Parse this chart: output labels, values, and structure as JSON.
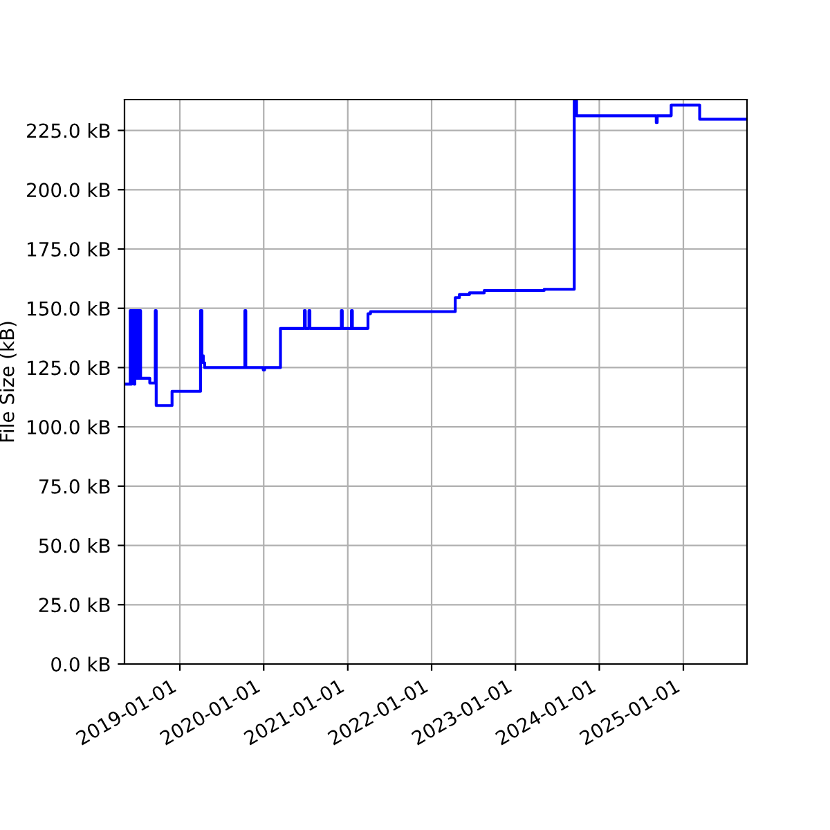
{
  "chart_data": {
    "type": "step",
    "ylabel": "File Size (kB)",
    "x": [
      "2018-05-05",
      "2018-05-30",
      "2018-06-03",
      "2018-06-05",
      "2018-06-09",
      "2018-06-12",
      "2018-06-16",
      "2018-06-19",
      "2018-06-23",
      "2018-06-26",
      "2018-06-30",
      "2018-07-03",
      "2018-07-07",
      "2018-07-10",
      "2018-07-14",
      "2018-08-23",
      "2018-09-16",
      "2018-09-20",
      "2018-11-28",
      "2019-04-01",
      "2019-04-07",
      "2019-04-13",
      "2019-04-19",
      "2019-10-11",
      "2019-10-15",
      "2019-12-30",
      "2020-01-05",
      "2020-03-14",
      "2020-06-26",
      "2020-06-30",
      "2020-07-16",
      "2020-07-20",
      "2020-12-04",
      "2020-12-08",
      "2021-01-17",
      "2021-01-21",
      "2021-03-30",
      "2021-04-10",
      "2022-04-14",
      "2022-05-02",
      "2022-06-15",
      "2022-08-18",
      "2023-05-06",
      "2023-09-14",
      "2023-09-24",
      "2024-09-05",
      "2024-09-09",
      "2024-11-09",
      "2025-03-13",
      "2025-10-05"
    ],
    "series": [
      {
        "color": "#0000ff",
        "values": [
          118,
          149,
          118,
          149,
          120.5,
          149,
          118,
          149,
          120.5,
          149,
          120.5,
          149,
          120.5,
          149,
          120.5,
          118.5,
          149,
          109,
          115,
          149,
          130,
          127,
          125,
          149,
          125,
          124,
          125,
          141.5,
          149,
          141.5,
          149,
          141.5,
          149,
          141.5,
          149,
          141.5,
          147.7,
          148.6,
          154.5,
          155.8,
          156.5,
          157.5,
          158,
          237.5,
          231.2,
          228.3,
          231.2,
          235.7,
          229.7,
          229.7
        ]
      }
    ],
    "xlim": [
      "2018-05-05",
      "2025-10-05"
    ],
    "xticks": [
      "2019-01-01",
      "2020-01-01",
      "2021-01-01",
      "2022-01-01",
      "2023-01-01",
      "2024-01-01",
      "2025-01-01"
    ],
    "ylim": [
      0,
      238
    ],
    "yticks": [
      {
        "value": 0,
        "label": "0.0 kB"
      },
      {
        "value": 25,
        "label": "25.0 kB"
      },
      {
        "value": 50,
        "label": "50.0 kB"
      },
      {
        "value": 75,
        "label": "75.0 kB"
      },
      {
        "value": 100,
        "label": "100.0 kB"
      },
      {
        "value": 125,
        "label": "125.0 kB"
      },
      {
        "value": 150,
        "label": "150.0 kB"
      },
      {
        "value": 175,
        "label": "175.0 kB"
      },
      {
        "value": 200,
        "label": "200.0 kB"
      },
      {
        "value": 225,
        "label": "225.0 kB"
      }
    ],
    "grid": true
  }
}
